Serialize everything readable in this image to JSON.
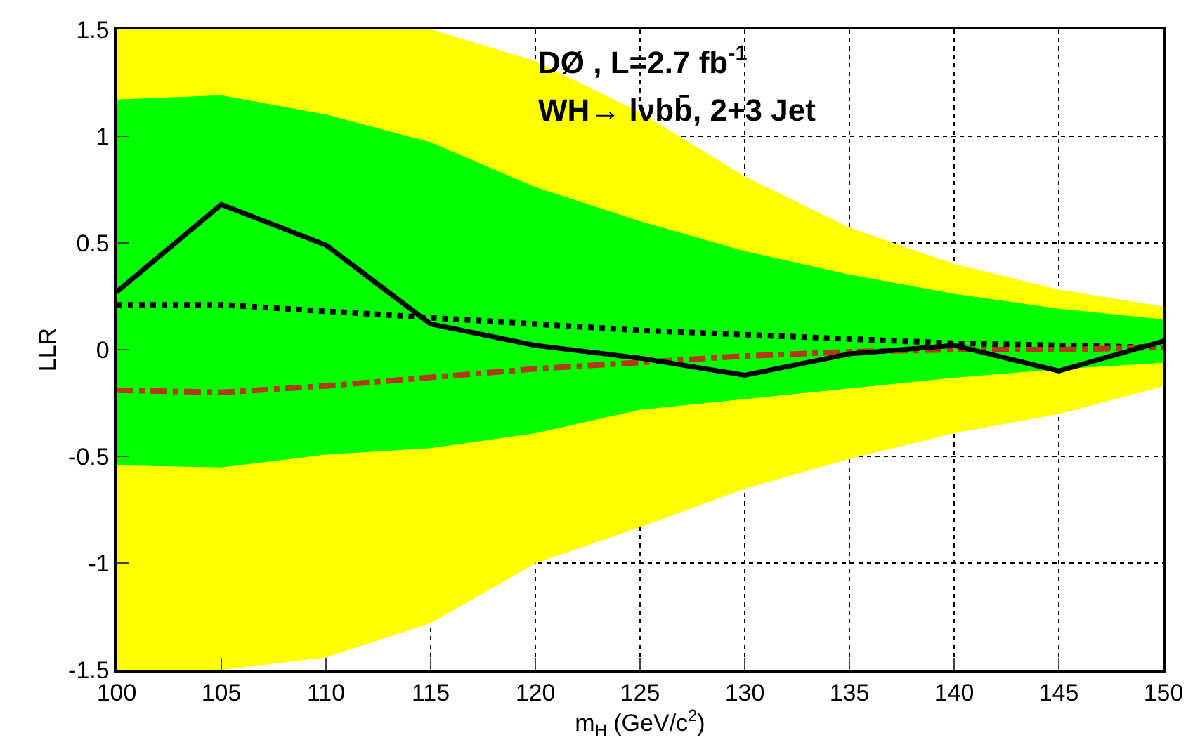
{
  "chart_data": {
    "type": "area",
    "xlabel": "m$_{H}$ (GeV/c$^{2}$)",
    "ylabel": "LLR",
    "annotations": [
      "DØ , L=2.7 fb$^{-1}$",
      "WH→ lνbb̄, 2+3 Jet"
    ],
    "x": [
      100,
      105,
      110,
      115,
      120,
      125,
      130,
      135,
      140,
      145,
      150
    ],
    "xlim": [
      100,
      150
    ],
    "xticks": [
      100,
      105,
      110,
      115,
      120,
      125,
      130,
      135,
      140,
      145,
      150
    ],
    "ylim": [
      -1.5,
      1.5
    ],
    "yticks": [
      -1.5,
      -1,
      -0.5,
      0,
      0.5,
      1,
      1.5
    ],
    "grid": true,
    "series": [
      {
        "color": "#ffff00",
        "values": [
          1.5,
          1.5,
          1.5,
          1.5,
          1.35,
          1.11,
          0.81,
          0.57,
          0.4,
          0.28,
          0.2
        ]
      },
      {
        "color": "#ffff00",
        "values": [
          -1.5,
          -1.5,
          -1.44,
          -1.28,
          -1.0,
          -0.83,
          -0.65,
          -0.51,
          -0.39,
          -0.3,
          -0.17
        ]
      },
      {
        "color": "#00ff00",
        "values": [
          1.17,
          1.19,
          1.1,
          0.97,
          0.76,
          0.6,
          0.46,
          0.35,
          0.26,
          0.19,
          0.14
        ]
      },
      {
        "color": "#00ff00",
        "values": [
          -0.54,
          -0.55,
          -0.49,
          -0.46,
          -0.39,
          -0.28,
          -0.23,
          -0.18,
          -0.13,
          -0.09,
          -0.06
        ]
      },
      {
        "type": "line",
        "color": "#000000",
        "line_style": "dotted",
        "values": [
          0.21,
          0.21,
          0.18,
          0.15,
          0.12,
          0.09,
          0.07,
          0.05,
          0.03,
          0.02,
          0.01
        ]
      },
      {
        "type": "line",
        "color": "#b03a1a",
        "line_style": "dashdot",
        "values": [
          -0.19,
          -0.2,
          -0.17,
          -0.13,
          -0.09,
          -0.06,
          -0.03,
          -0.01,
          0.0,
          0.0,
          0.01
        ]
      },
      {
        "type": "line",
        "color": "#000000",
        "line_style": "solid",
        "values": [
          0.27,
          0.68,
          0.49,
          0.12,
          0.02,
          -0.04,
          -0.12,
          -0.02,
          0.02,
          -0.1,
          0.04
        ]
      }
    ]
  }
}
